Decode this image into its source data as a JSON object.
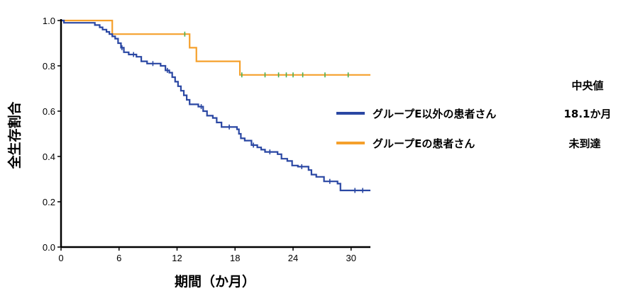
{
  "chart_data": {
    "type": "line",
    "xlabel": "期間（か月）",
    "ylabel": "全生存割合",
    "xlim": [
      0,
      32
    ],
    "ylim": [
      0,
      1.0
    ],
    "x_ticks": [
      "0",
      "6",
      "12",
      "18",
      "24",
      "30"
    ],
    "x_tick_values": [
      0,
      6,
      12,
      18,
      24,
      30
    ],
    "y_ticks": [
      "0.0",
      "0.2",
      "0.4",
      "0.6",
      "0.8",
      "1.0"
    ],
    "y_tick_values": [
      0,
      0.2,
      0.4,
      0.6,
      0.8,
      1.0
    ],
    "grid": false,
    "legend_position": "right",
    "median_header": "中央値",
    "series": [
      {
        "name": "グループE以外の患者さん",
        "median": "18.1か月",
        "color": "#2a47a3",
        "step": true,
        "points": [
          [
            0,
            1.0
          ],
          [
            0.3,
            0.99
          ],
          [
            3.5,
            0.98
          ],
          [
            4.0,
            0.97
          ],
          [
            4.3,
            0.96
          ],
          [
            4.7,
            0.95
          ],
          [
            5.0,
            0.94
          ],
          [
            5.3,
            0.93
          ],
          [
            5.6,
            0.92
          ],
          [
            5.9,
            0.9
          ],
          [
            6.2,
            0.88
          ],
          [
            6.5,
            0.86
          ],
          [
            7.0,
            0.85
          ],
          [
            7.8,
            0.84
          ],
          [
            8.3,
            0.82
          ],
          [
            8.9,
            0.81
          ],
          [
            10.3,
            0.8
          ],
          [
            10.8,
            0.78
          ],
          [
            11.2,
            0.77
          ],
          [
            11.5,
            0.75
          ],
          [
            11.8,
            0.73
          ],
          [
            12.1,
            0.71
          ],
          [
            12.4,
            0.69
          ],
          [
            12.7,
            0.67
          ],
          [
            13.0,
            0.65
          ],
          [
            13.3,
            0.63
          ],
          [
            14.2,
            0.62
          ],
          [
            14.7,
            0.6
          ],
          [
            15.1,
            0.58
          ],
          [
            15.7,
            0.57
          ],
          [
            16.1,
            0.55
          ],
          [
            16.6,
            0.53
          ],
          [
            18.2,
            0.52
          ],
          [
            18.4,
            0.5
          ],
          [
            18.6,
            0.48
          ],
          [
            19.0,
            0.47
          ],
          [
            19.7,
            0.45
          ],
          [
            20.3,
            0.44
          ],
          [
            20.7,
            0.43
          ],
          [
            21.1,
            0.42
          ],
          [
            22.4,
            0.41
          ],
          [
            22.8,
            0.39
          ],
          [
            23.4,
            0.38
          ],
          [
            23.9,
            0.36
          ],
          [
            24.5,
            0.355
          ],
          [
            25.6,
            0.34
          ],
          [
            25.9,
            0.32
          ],
          [
            26.4,
            0.31
          ],
          [
            27.2,
            0.29
          ],
          [
            28.6,
            0.28
          ],
          [
            28.9,
            0.25
          ],
          [
            32,
            0.25
          ]
        ],
        "censored_x": [
          6.3,
          7.5,
          9.5,
          11.0,
          14.5,
          17.4,
          19.9,
          21.6,
          24.9,
          27.8,
          30.4,
          31.2
        ]
      },
      {
        "name": "グループEの患者さん",
        "median": "未到達",
        "color": "#f5a02c",
        "step": true,
        "points": [
          [
            0,
            1.0
          ],
          [
            5.3,
            0.94
          ],
          [
            13.3,
            0.88
          ],
          [
            14.0,
            0.82
          ],
          [
            18.5,
            0.76
          ],
          [
            32,
            0.76
          ]
        ],
        "censored_x": [
          12.8,
          18.7,
          21.1,
          22.5,
          23.3,
          24.0,
          25.0,
          27.3,
          29.7
        ]
      }
    ]
  }
}
